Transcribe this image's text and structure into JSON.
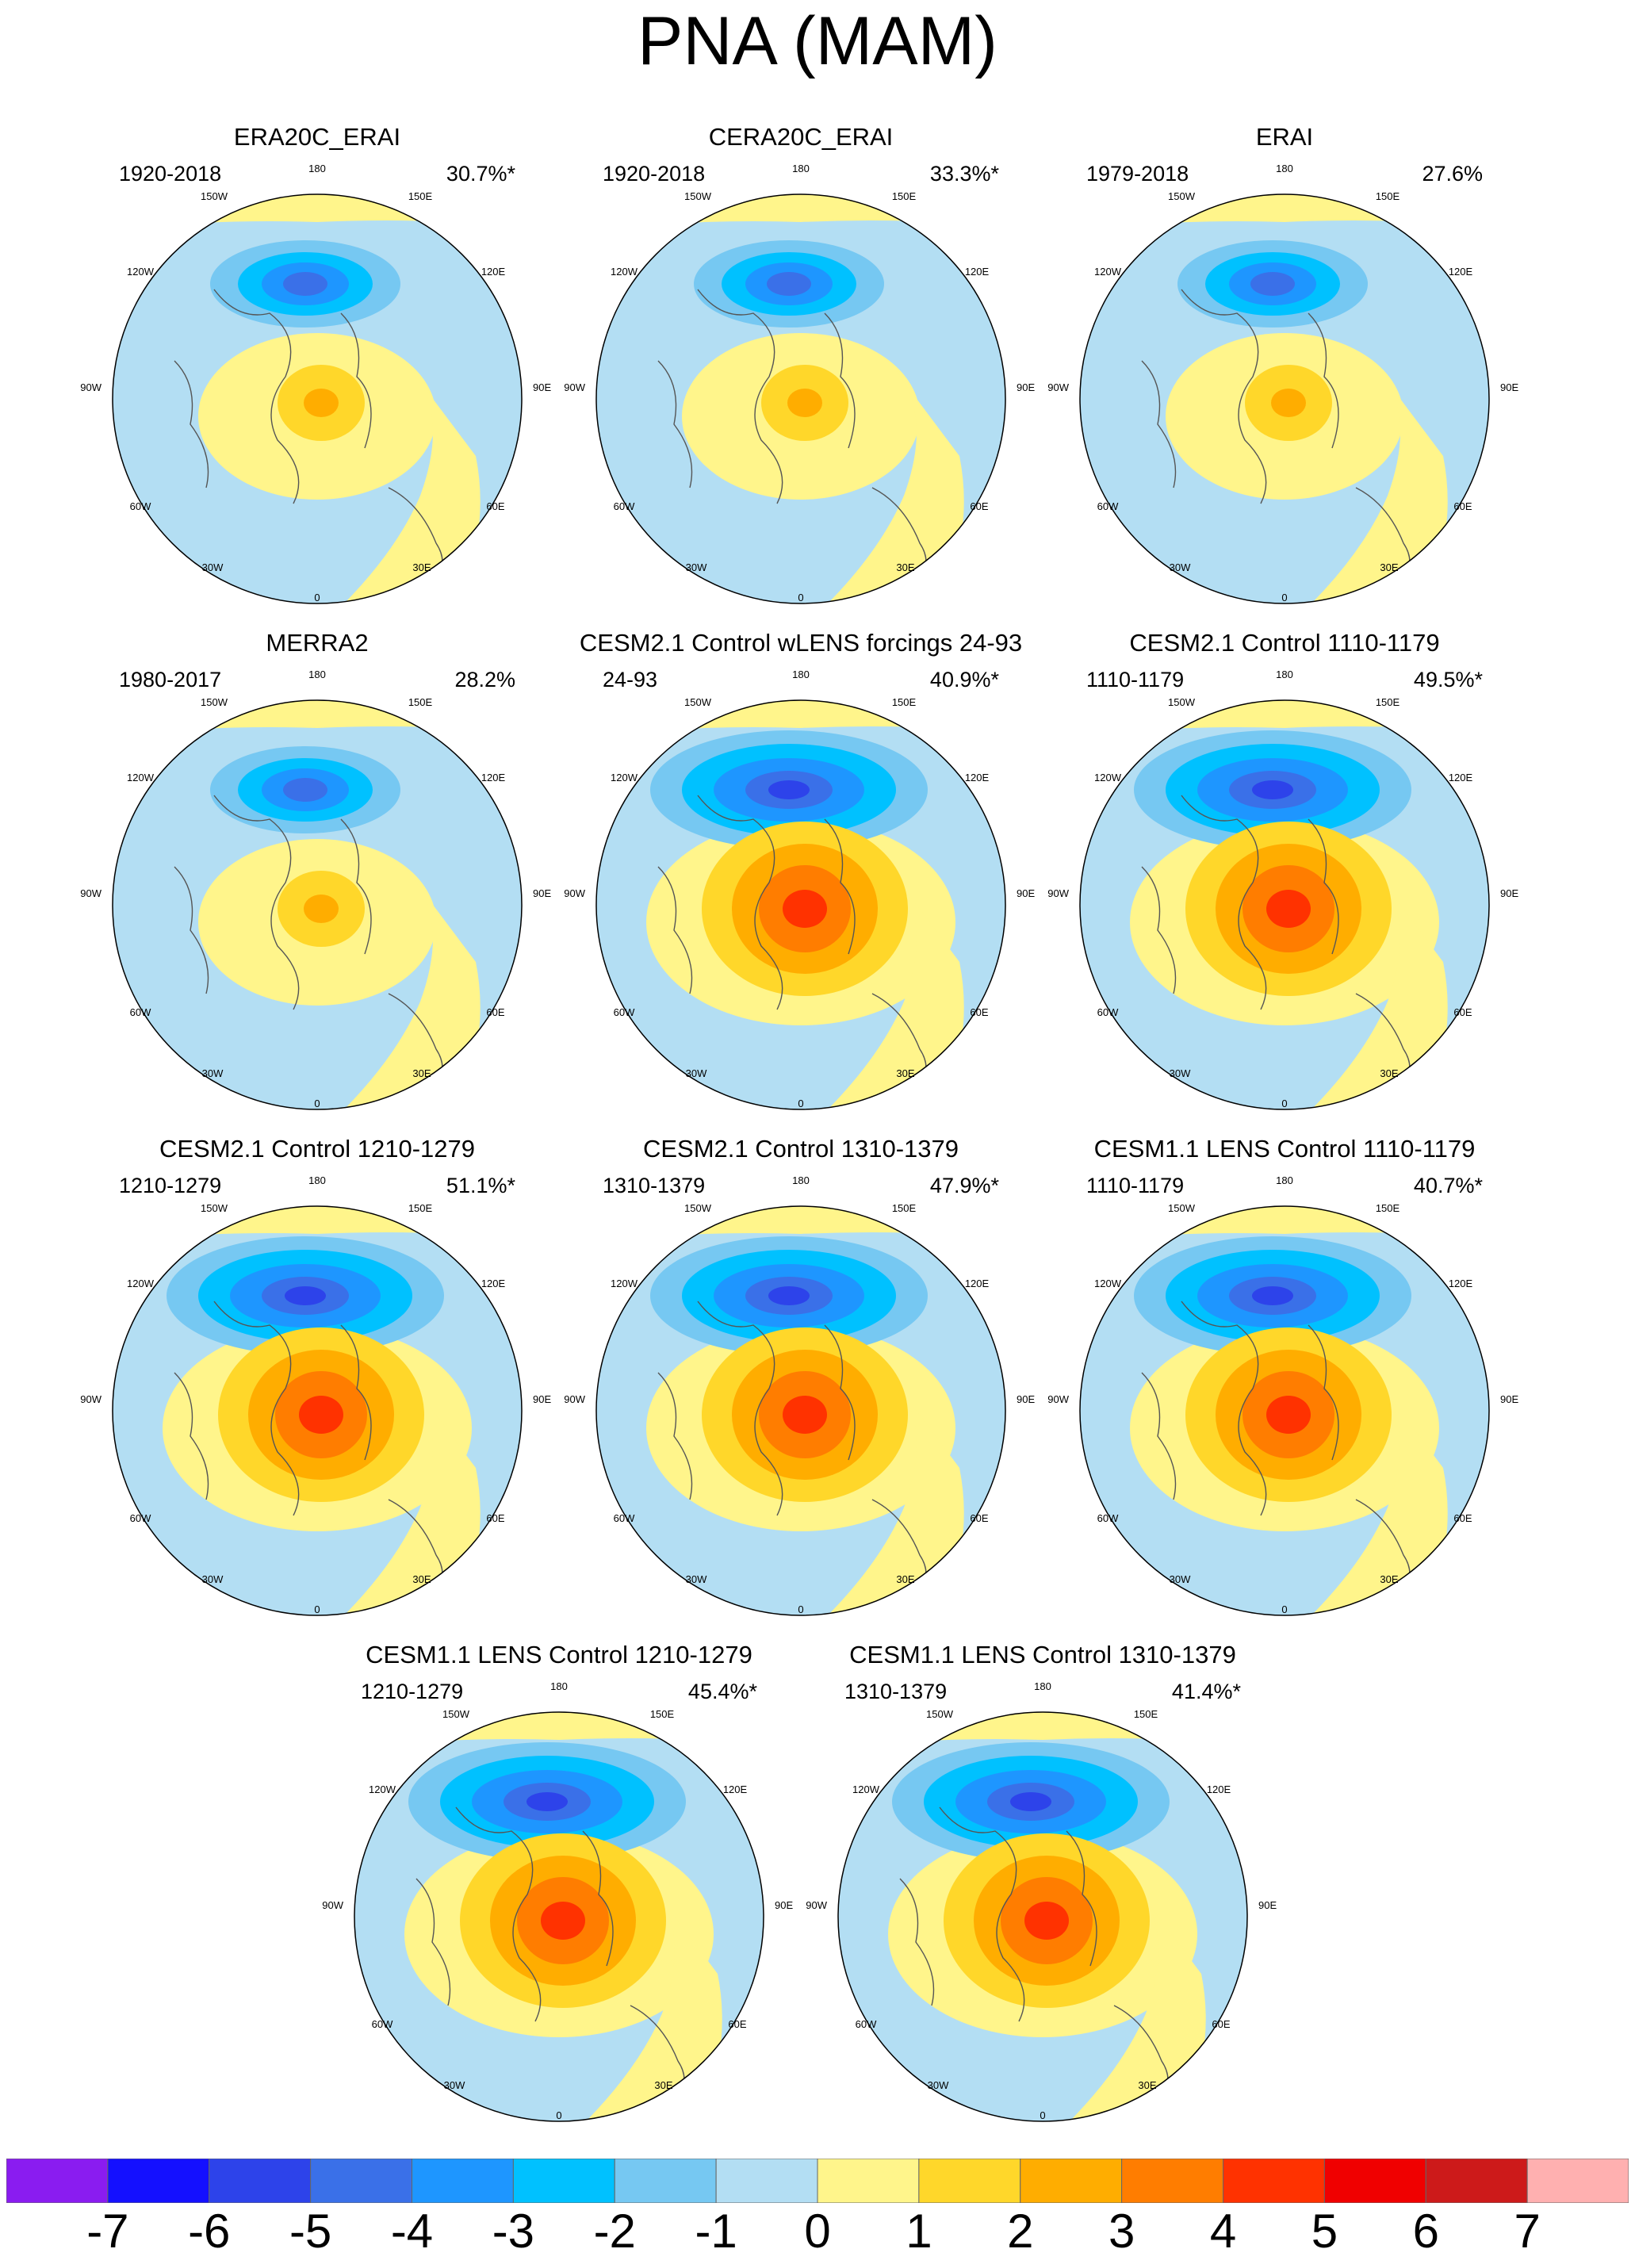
{
  "title": "PNA (MAM)",
  "panels": [
    {
      "title": "ERA20C_ERAI",
      "period": "1920-2018",
      "pct": "30.7%*",
      "style": "weak"
    },
    {
      "title": "CERA20C_ERAI",
      "period": "1920-2018",
      "pct": "33.3%*",
      "style": "weak"
    },
    {
      "title": "ERAI",
      "period": "1979-2018",
      "pct": "27.6%",
      "style": "weak"
    },
    {
      "title": "MERRA2",
      "period": "1980-2017",
      "pct": "28.2%",
      "style": "weak"
    },
    {
      "title": "CESM2.1 Control wLENS forcings 24-93",
      "period": "24-93",
      "pct": "40.9%*",
      "style": "strong"
    },
    {
      "title": "CESM2.1 Control 1110-1179",
      "period": "1110-1179",
      "pct": "49.5%*",
      "style": "strong"
    },
    {
      "title": "CESM2.1 Control 1210-1279",
      "period": "1210-1279",
      "pct": "51.1%*",
      "style": "strong"
    },
    {
      "title": "CESM2.1 Control 1310-1379",
      "period": "1310-1379",
      "pct": "47.9%*",
      "style": "strong"
    },
    {
      "title": "CESM1.1 LENS Control 1110-1179",
      "period": "1110-1179",
      "pct": "40.7%*",
      "style": "strong"
    },
    {
      "title": "CESM1.1 LENS Control 1210-1279",
      "period": "1210-1279",
      "pct": "45.4%*",
      "style": "strong"
    },
    {
      "title": "CESM1.1 LENS Control 1310-1379",
      "period": "1310-1379",
      "pct": "41.4%*",
      "style": "strong"
    }
  ],
  "longitude_labels": [
    "180",
    "150E",
    "120E",
    "90E",
    "60E",
    "30E",
    "0",
    "30W",
    "60W",
    "90W",
    "120W",
    "150W"
  ],
  "colorbar": {
    "labels": [
      "-7",
      "-6",
      "-5",
      "-4",
      "-3",
      "-2",
      "-1",
      "0",
      "1",
      "2",
      "3",
      "4",
      "5",
      "6",
      "7"
    ],
    "colors": [
      "#8a1cf0",
      "#1410ff",
      "#2d43ea",
      "#3a70e8",
      "#1e96ff",
      "#00c1ff",
      "#76c8f2",
      "#b3def3",
      "#fff58b",
      "#ffd72a",
      "#ffad00",
      "#ff7d00",
      "#ff3200",
      "#f00000",
      "#cd1a1a",
      "#ffb0b0"
    ]
  }
}
